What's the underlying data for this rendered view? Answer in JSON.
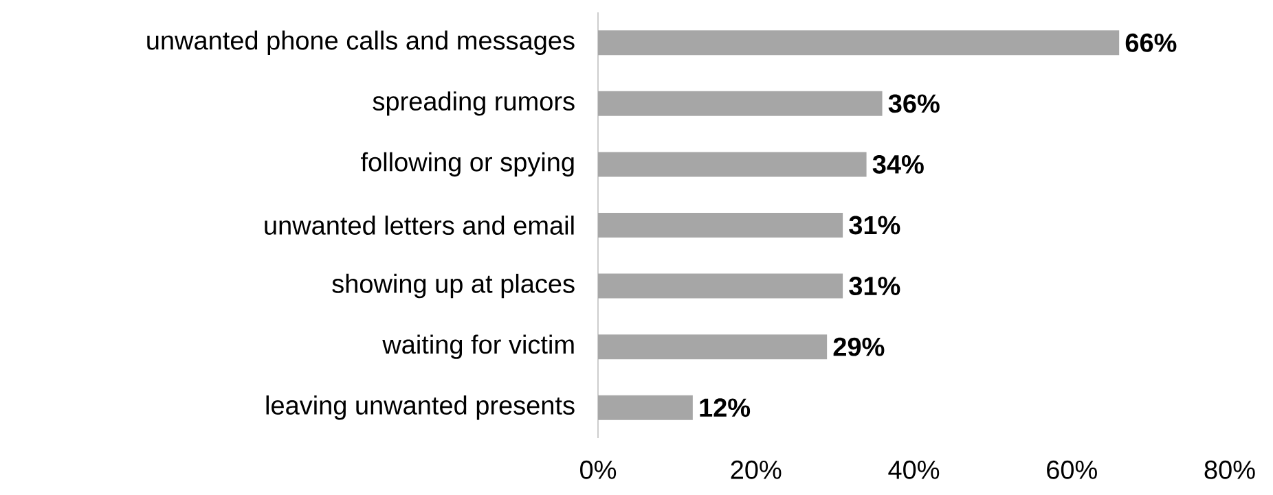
{
  "chart_data": {
    "type": "bar",
    "orientation": "horizontal",
    "categories": [
      "unwanted phone calls and messages",
      "spreading rumors",
      "following or spying",
      "unwanted letters and email",
      "showing up at places",
      "waiting for victim",
      "leaving unwanted presents"
    ],
    "values": [
      66,
      36,
      34,
      31,
      31,
      29,
      12
    ],
    "value_labels": [
      "66%",
      "36%",
      "34%",
      "31%",
      "31%",
      "29%",
      "12%"
    ],
    "color": "#a6a6a6",
    "xlim": [
      0,
      80
    ],
    "xticks": [
      {
        "value": 0,
        "label": "0%"
      },
      {
        "value": 20,
        "label": "20%"
      },
      {
        "value": 40,
        "label": "40%"
      },
      {
        "value": 60,
        "label": "60%"
      },
      {
        "value": 80,
        "label": "80%"
      }
    ]
  }
}
